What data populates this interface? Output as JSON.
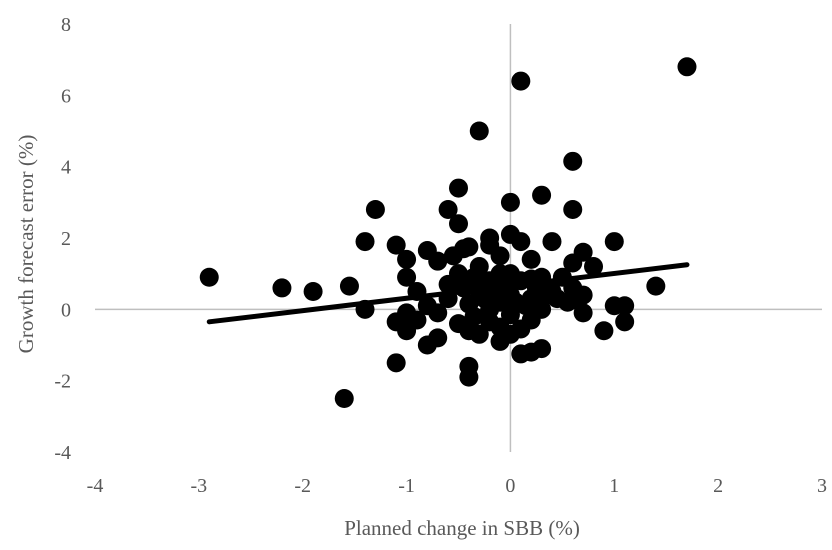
{
  "chart_data": {
    "type": "scatter",
    "title": "",
    "xlabel": "Planned change in SBB (%)",
    "ylabel": "Growth forecast error (%)",
    "xlim": [
      -4,
      3
    ],
    "ylim": [
      -4,
      8
    ],
    "x_ticks": [
      -4,
      -3,
      -2,
      -1,
      0,
      1,
      2,
      3
    ],
    "y_ticks": [
      -4,
      -2,
      0,
      2,
      4,
      6,
      8
    ],
    "x_tick_labels": [
      "-4",
      "-3",
      "-2",
      "-1",
      "0",
      "1",
      "2",
      "3"
    ],
    "y_tick_labels": [
      "-4",
      "-2",
      "0",
      "2",
      "4",
      "6",
      "8"
    ],
    "grid": false,
    "legend": "none",
    "colors": {
      "points": "#000000",
      "trendline": "#000000",
      "axis": "#bfbfbf",
      "text": "#595959"
    },
    "trendline": {
      "type": "linear",
      "x_start": -2.9,
      "y_start": -0.35,
      "x_end": 1.7,
      "y_end": 1.25
    },
    "points": [
      {
        "x": -2.9,
        "y": 0.9
      },
      {
        "x": -2.2,
        "y": 0.6
      },
      {
        "x": -1.9,
        "y": 0.5
      },
      {
        "x": -1.6,
        "y": -2.5
      },
      {
        "x": -1.55,
        "y": 0.65
      },
      {
        "x": -1.4,
        "y": 1.9
      },
      {
        "x": -1.4,
        "y": 0.0
      },
      {
        "x": -1.3,
        "y": 2.8
      },
      {
        "x": -1.1,
        "y": 1.8
      },
      {
        "x": -1.1,
        "y": -0.35
      },
      {
        "x": -1.1,
        "y": -1.5
      },
      {
        "x": -1.0,
        "y": 1.4
      },
      {
        "x": -1.0,
        "y": 0.9
      },
      {
        "x": -1.0,
        "y": -0.1
      },
      {
        "x": -1.0,
        "y": -0.6
      },
      {
        "x": -0.9,
        "y": 0.5
      },
      {
        "x": -0.9,
        "y": -0.3
      },
      {
        "x": -0.8,
        "y": 1.65
      },
      {
        "x": -0.8,
        "y": 0.1
      },
      {
        "x": -0.8,
        "y": -1.0
      },
      {
        "x": -0.7,
        "y": 1.35
      },
      {
        "x": -0.7,
        "y": -0.1
      },
      {
        "x": -0.7,
        "y": -0.8
      },
      {
        "x": -0.6,
        "y": 2.8
      },
      {
        "x": -0.6,
        "y": 0.7
      },
      {
        "x": -0.6,
        "y": 0.3
      },
      {
        "x": -0.55,
        "y": 1.5
      },
      {
        "x": -0.5,
        "y": 3.4
      },
      {
        "x": -0.5,
        "y": 2.4
      },
      {
        "x": -0.5,
        "y": 1.0
      },
      {
        "x": -0.5,
        "y": -0.4
      },
      {
        "x": -0.45,
        "y": 1.7
      },
      {
        "x": -0.45,
        "y": 0.6
      },
      {
        "x": -0.4,
        "y": 1.75
      },
      {
        "x": -0.4,
        "y": 0.15
      },
      {
        "x": -0.4,
        "y": -0.6
      },
      {
        "x": -0.4,
        "y": -1.6
      },
      {
        "x": -0.4,
        "y": -1.9
      },
      {
        "x": -0.35,
        "y": 0.9
      },
      {
        "x": -0.35,
        "y": -0.2
      },
      {
        "x": -0.3,
        "y": 5.0
      },
      {
        "x": -0.3,
        "y": 1.2
      },
      {
        "x": -0.3,
        "y": 0.5
      },
      {
        "x": -0.3,
        "y": -0.7
      },
      {
        "x": -0.25,
        "y": 0.3
      },
      {
        "x": -0.2,
        "y": 2.0
      },
      {
        "x": -0.2,
        "y": 1.8
      },
      {
        "x": -0.2,
        "y": 0.8
      },
      {
        "x": -0.2,
        "y": 0.0
      },
      {
        "x": -0.2,
        "y": -0.35
      },
      {
        "x": -0.15,
        "y": 0.55
      },
      {
        "x": -0.1,
        "y": 1.5
      },
      {
        "x": -0.1,
        "y": 1.0
      },
      {
        "x": -0.1,
        "y": 0.2
      },
      {
        "x": -0.1,
        "y": -0.5
      },
      {
        "x": -0.1,
        "y": -0.9
      },
      {
        "x": -0.05,
        "y": 0.65
      },
      {
        "x": 0.0,
        "y": 3.0
      },
      {
        "x": 0.0,
        "y": 2.1
      },
      {
        "x": 0.0,
        "y": 1.0
      },
      {
        "x": 0.0,
        "y": 0.4
      },
      {
        "x": 0.0,
        "y": -0.15
      },
      {
        "x": 0.0,
        "y": -0.7
      },
      {
        "x": 0.05,
        "y": 0.2
      },
      {
        "x": 0.1,
        "y": 6.4
      },
      {
        "x": 0.1,
        "y": 1.9
      },
      {
        "x": 0.1,
        "y": 0.8
      },
      {
        "x": 0.1,
        "y": -0.55
      },
      {
        "x": 0.1,
        "y": -1.25
      },
      {
        "x": 0.15,
        "y": 0.1
      },
      {
        "x": 0.2,
        "y": 1.4
      },
      {
        "x": 0.2,
        "y": 0.85
      },
      {
        "x": 0.2,
        "y": 0.3
      },
      {
        "x": 0.2,
        "y": -0.3
      },
      {
        "x": 0.2,
        "y": -1.2
      },
      {
        "x": 0.25,
        "y": 0.6
      },
      {
        "x": 0.3,
        "y": 3.2
      },
      {
        "x": 0.3,
        "y": 0.9
      },
      {
        "x": 0.3,
        "y": 0.0
      },
      {
        "x": 0.3,
        "y": -1.1
      },
      {
        "x": 0.35,
        "y": 0.4
      },
      {
        "x": 0.4,
        "y": 1.9
      },
      {
        "x": 0.4,
        "y": 0.5
      },
      {
        "x": 0.45,
        "y": 0.3
      },
      {
        "x": 0.5,
        "y": 0.9
      },
      {
        "x": 0.55,
        "y": 0.2
      },
      {
        "x": 0.6,
        "y": 4.15
      },
      {
        "x": 0.6,
        "y": 2.8
      },
      {
        "x": 0.6,
        "y": 1.3
      },
      {
        "x": 0.6,
        "y": 0.6
      },
      {
        "x": 0.65,
        "y": 0.25
      },
      {
        "x": 0.7,
        "y": 1.6
      },
      {
        "x": 0.7,
        "y": 0.4
      },
      {
        "x": 0.7,
        "y": -0.1
      },
      {
        "x": 0.8,
        "y": 1.2
      },
      {
        "x": 0.9,
        "y": -0.6
      },
      {
        "x": 1.0,
        "y": 1.9
      },
      {
        "x": 1.0,
        "y": 0.1
      },
      {
        "x": 1.1,
        "y": 0.1
      },
      {
        "x": 1.1,
        "y": -0.35
      },
      {
        "x": 1.4,
        "y": 0.65
      },
      {
        "x": 1.7,
        "y": 6.8
      }
    ]
  }
}
